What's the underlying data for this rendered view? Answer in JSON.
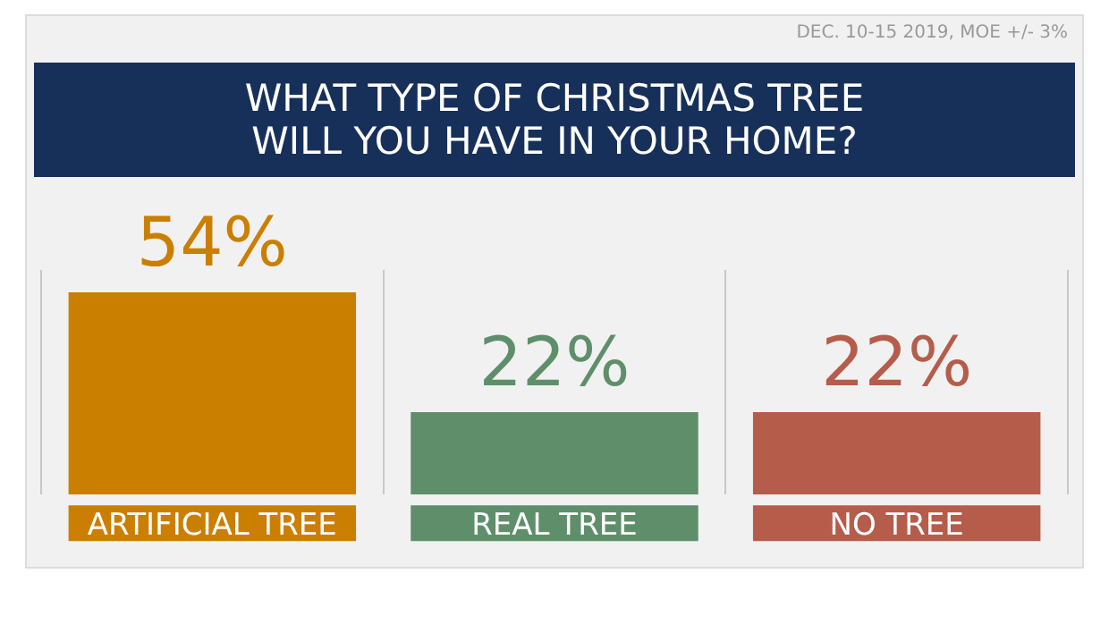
{
  "chart_data": {
    "type": "bar",
    "title": "WHAT TYPE OF CHRISTMAS TREE\nWILL YOU HAVE IN YOUR HOME?",
    "annotations": [
      "DEC. 10-15 2019, MOE +/- 3%"
    ],
    "categories": [
      "ARTIFICIAL TREE",
      "REAL TREE",
      "NO TREE"
    ],
    "values": [
      54,
      22,
      22
    ],
    "colors": [
      "#cb7f00",
      "#5e8f6a",
      "#b55c4b"
    ],
    "value_labels": [
      "54%",
      "22%",
      "22%"
    ],
    "grid": "x",
    "legend": false
  }
}
